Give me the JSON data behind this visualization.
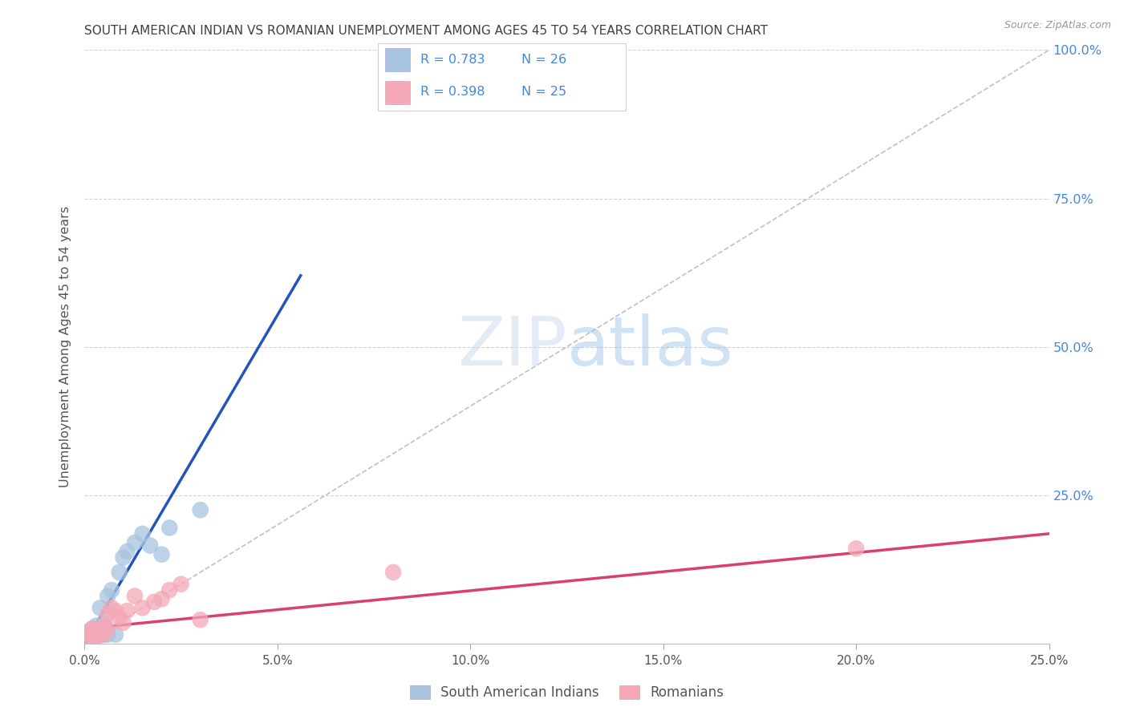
{
  "title": "SOUTH AMERICAN INDIAN VS ROMANIAN UNEMPLOYMENT AMONG AGES 45 TO 54 YEARS CORRELATION CHART",
  "source": "Source: ZipAtlas.com",
  "xlabel_ticks": [
    "0.0%",
    "5.0%",
    "10.0%",
    "15.0%",
    "20.0%",
    "25.0%"
  ],
  "ylabel_right_ticks": [
    "25.0%",
    "50.0%",
    "75.0%",
    "100.0%"
  ],
  "ylabel_label": "Unemployment Among Ages 45 to 54 years",
  "legend_label1": "South American Indians",
  "legend_label2": "Romanians",
  "R1": 0.783,
  "N1": 26,
  "R2": 0.398,
  "N2": 25,
  "color1": "#a8c4e0",
  "color2": "#f4a8b8",
  "line1_color": "#2255bb",
  "line2_color": "#d94070",
  "diagonal_color": "#c0c0c8",
  "background_color": "#ffffff",
  "grid_color": "#d0d0d8",
  "title_color": "#404040",
  "right_axis_color": "#4488dd",
  "xlim": [
    0.0,
    0.25
  ],
  "ylim": [
    0.0,
    1.0
  ],
  "scatter1_x": [
    0.001,
    0.001,
    0.002,
    0.002,
    0.003,
    0.003,
    0.003,
    0.004,
    0.004,
    0.004,
    0.005,
    0.005,
    0.005,
    0.006,
    0.006,
    0.007,
    0.008,
    0.009,
    0.01,
    0.011,
    0.013,
    0.015,
    0.017,
    0.02,
    0.022,
    0.03
  ],
  "scatter1_y": [
    0.01,
    0.02,
    0.015,
    0.025,
    0.012,
    0.02,
    0.03,
    0.015,
    0.025,
    0.06,
    0.015,
    0.025,
    0.035,
    0.015,
    0.08,
    0.09,
    0.015,
    0.12,
    0.145,
    0.155,
    0.17,
    0.185,
    0.165,
    0.15,
    0.195,
    0.225
  ],
  "scatter2_x": [
    0.001,
    0.001,
    0.002,
    0.002,
    0.003,
    0.003,
    0.004,
    0.005,
    0.005,
    0.006,
    0.006,
    0.007,
    0.008,
    0.009,
    0.01,
    0.011,
    0.013,
    0.015,
    0.018,
    0.02,
    0.022,
    0.025,
    0.03,
    0.08,
    0.2
  ],
  "scatter2_y": [
    0.01,
    0.02,
    0.015,
    0.025,
    0.01,
    0.02,
    0.025,
    0.015,
    0.03,
    0.025,
    0.05,
    0.06,
    0.055,
    0.045,
    0.035,
    0.055,
    0.08,
    0.06,
    0.07,
    0.075,
    0.09,
    0.1,
    0.04,
    0.12,
    0.16
  ],
  "line1_x0": 0.0,
  "line1_y0": 0.0,
  "line1_x1": 0.056,
  "line1_y1": 0.62,
  "line2_x0": 0.0,
  "line2_y0": 0.025,
  "line2_x1": 0.25,
  "line2_y1": 0.185
}
